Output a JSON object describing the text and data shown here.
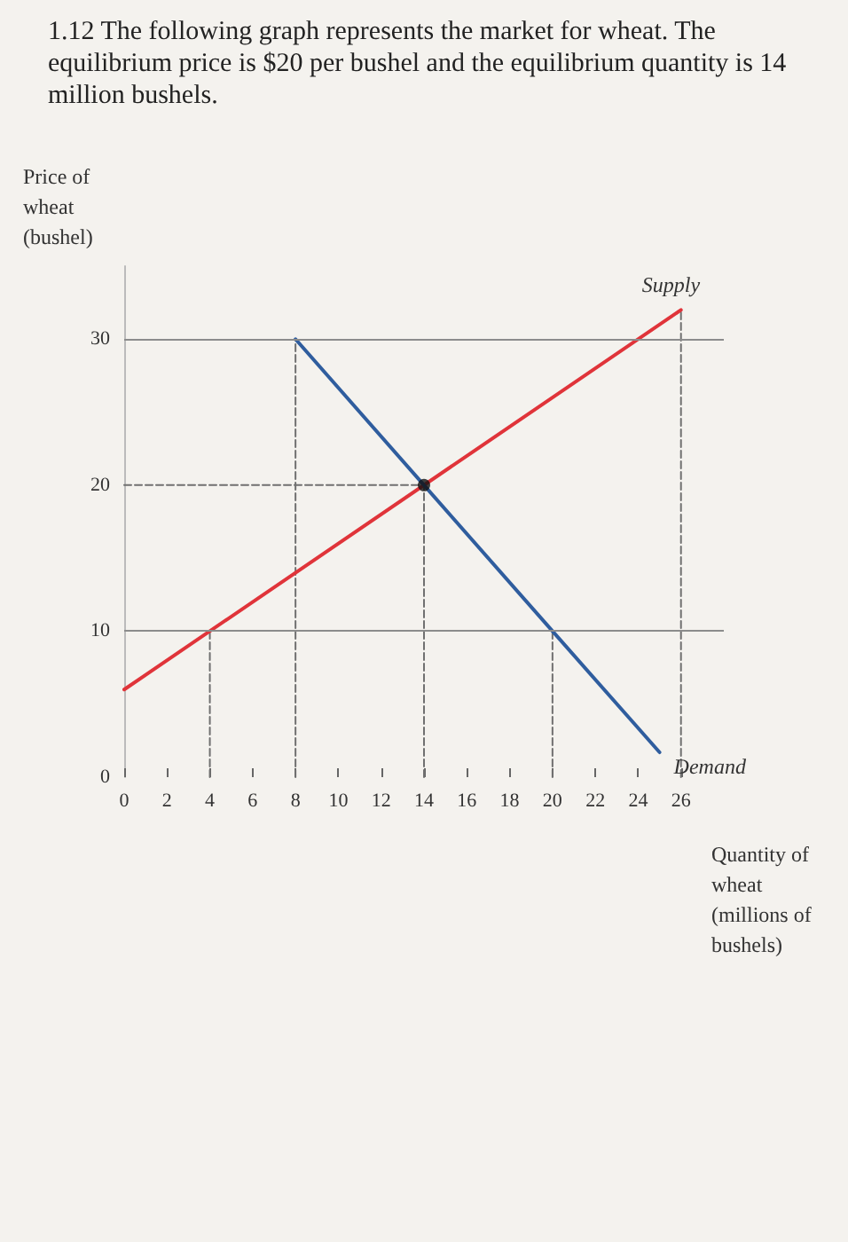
{
  "chart_data": {
    "type": "line",
    "title": "1.12 The following graph represents the market for wheat. The equilibrium price is $20 per bushel and the equilibrium quantity is 14 million bushels.",
    "xlabel": "Quantity of wheat (millions of bushels)",
    "ylabel": "Price of wheat (bushel)",
    "xlim": [
      0,
      28
    ],
    "xticks": [
      0,
      2,
      4,
      6,
      8,
      10,
      12,
      14,
      16,
      18,
      20,
      22,
      24,
      26
    ],
    "ylim": [
      0,
      35
    ],
    "yticks": [
      0,
      10,
      20,
      30
    ],
    "grid": false,
    "legend": false,
    "marker": "none",
    "ref_lines": [
      {
        "axis": "y",
        "value": 10,
        "color": "#8c8c8c"
      },
      {
        "axis": "y",
        "value": 30,
        "color": "#8c8c8c"
      }
    ],
    "series": [
      {
        "name": "Supply",
        "color": "#e0343a",
        "x": [
          0,
          26
        ],
        "values": [
          6,
          32
        ]
      },
      {
        "name": "Demand",
        "color": "#2f5d9e",
        "x": [
          8,
          14,
          20,
          25
        ],
        "values": [
          30,
          20,
          10,
          1.7
        ]
      },
      {
        "type": "scatter",
        "marker": "circle",
        "color": "#111111",
        "x": [
          14
        ],
        "values": [
          20
        ]
      },
      {
        "color": "#707070",
        "line_style": "dashed",
        "x": [
          0,
          14
        ],
        "values": [
          20,
          20
        ]
      },
      {
        "color": "#707070",
        "line_style": "dashed",
        "x": [
          4,
          4
        ],
        "values": [
          0,
          10
        ]
      },
      {
        "color": "#707070",
        "line_style": "dashed",
        "x": [
          8,
          8
        ],
        "values": [
          0,
          30
        ]
      },
      {
        "color": "#707070",
        "line_style": "dashed",
        "x": [
          14,
          14
        ],
        "values": [
          0,
          20
        ]
      },
      {
        "color": "#707070",
        "line_style": "dashed",
        "x": [
          20,
          20
        ],
        "values": [
          0,
          10
        ]
      },
      {
        "color": "#707070",
        "line_style": "dashed",
        "x": [
          26,
          26
        ],
        "values": [
          0,
          32
        ]
      }
    ]
  }
}
